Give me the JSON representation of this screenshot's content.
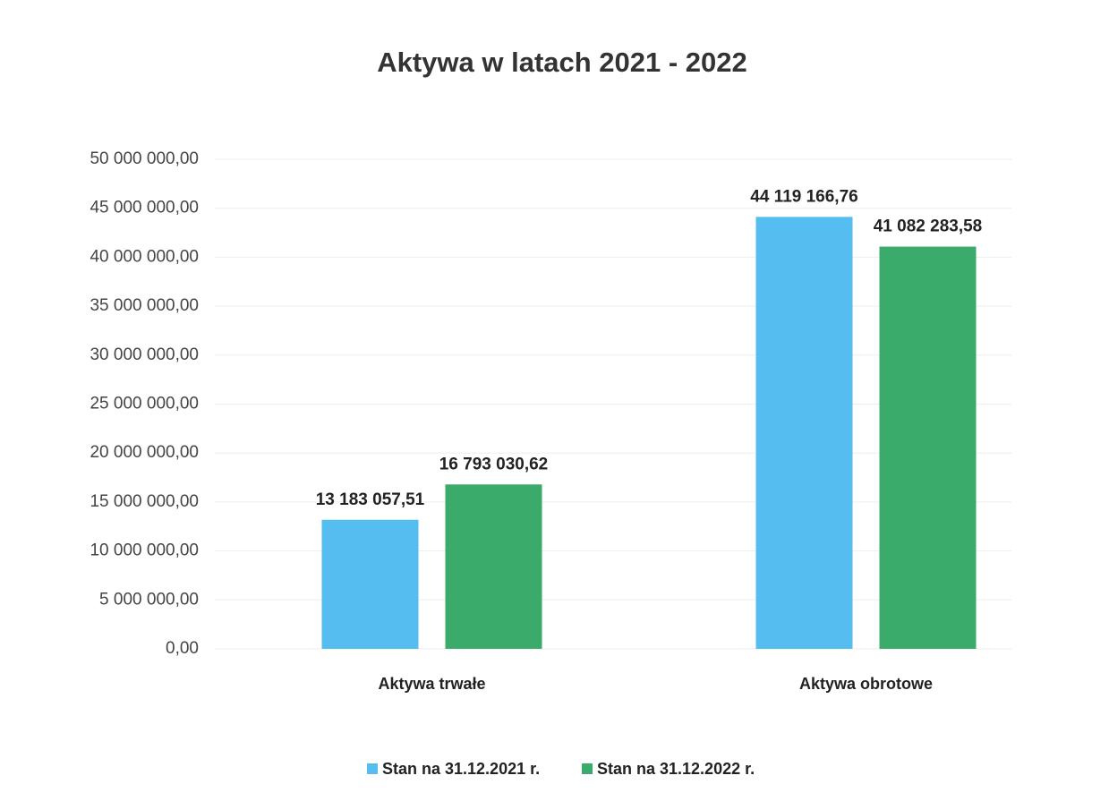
{
  "chart_data": {
    "type": "bar",
    "title": "Aktywa w latach 2021 - 2022",
    "categories": [
      "Aktywa trwałe",
      "Aktywa obrotowe"
    ],
    "series": [
      {
        "name": "Stan na 31.12.2021 r.",
        "color": "#56bdf0",
        "values": [
          13183057.51,
          44119166.76
        ],
        "value_labels": [
          "13 183 057,51",
          "44 119 166,76"
        ]
      },
      {
        "name": "Stan na 31.12.2022 r.",
        "color": "#3aab6a",
        "values": [
          16793030.62,
          41082283.58
        ],
        "value_labels": [
          "16 793 030,62",
          "41 082 283,58"
        ]
      }
    ],
    "ylim": [
      0,
      50000000
    ],
    "yticks": [
      {
        "value": 0,
        "label": "0,00"
      },
      {
        "value": 5000000,
        "label": "5 000 000,00"
      },
      {
        "value": 10000000,
        "label": "10 000 000,00"
      },
      {
        "value": 15000000,
        "label": "15 000 000,00"
      },
      {
        "value": 20000000,
        "label": "20 000 000,00"
      },
      {
        "value": 25000000,
        "label": "25 000 000,00"
      },
      {
        "value": 30000000,
        "label": "30 000 000,00"
      },
      {
        "value": 35000000,
        "label": "35 000 000,00"
      },
      {
        "value": 40000000,
        "label": "40 000 000,00"
      },
      {
        "value": 45000000,
        "label": "45 000 000,00"
      },
      {
        "value": 50000000,
        "label": "50 000 000,00"
      }
    ],
    "grid": true,
    "legend": "bottom"
  }
}
